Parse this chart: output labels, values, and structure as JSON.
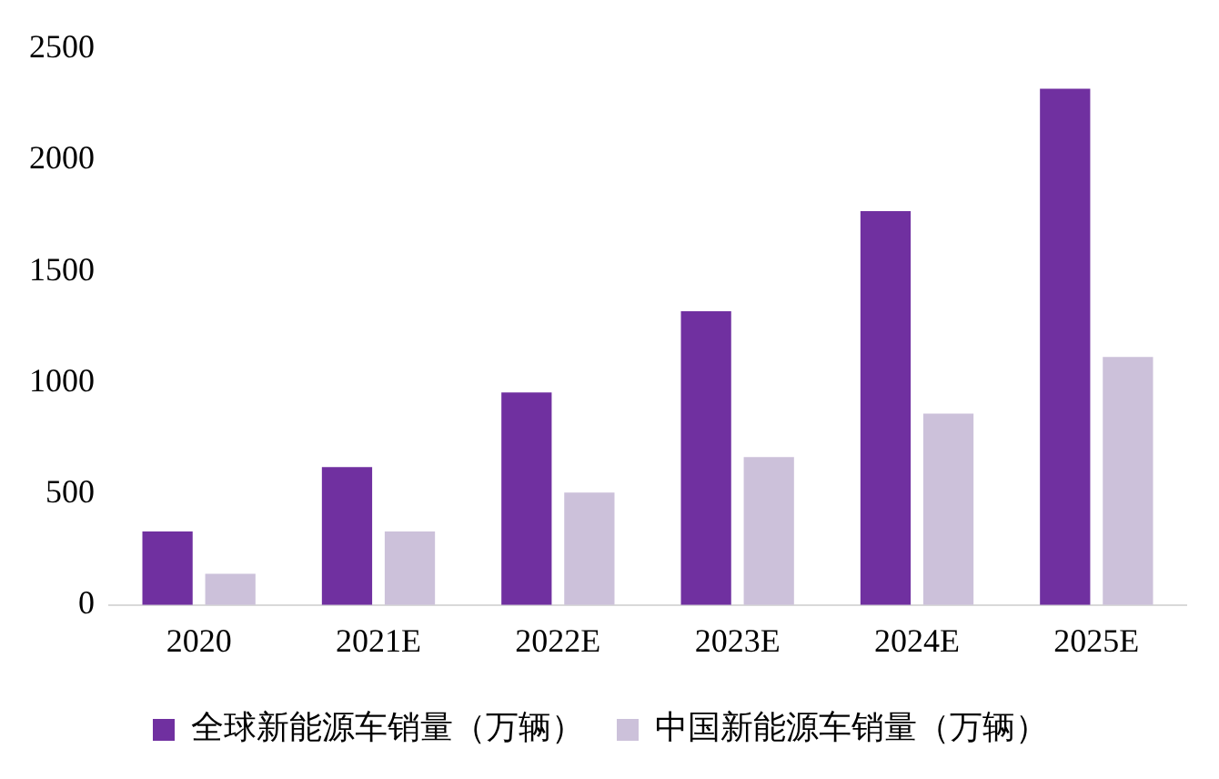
{
  "chart_data": {
    "type": "bar",
    "categories": [
      "2020",
      "2021E",
      "2022E",
      "2023E",
      "2024E",
      "2025E"
    ],
    "series": [
      {
        "name": "全球新能源车销量（万辆）",
        "color": "#7030a0",
        "values": [
          330,
          620,
          955,
          1320,
          1770,
          2320
        ]
      },
      {
        "name": "中国新能源车销量（万辆）",
        "color": "#ccc1da",
        "values": [
          140,
          330,
          505,
          665,
          860,
          1115
        ]
      }
    ],
    "ylim": [
      0,
      2500
    ],
    "yticks": [
      0,
      500,
      1000,
      1500,
      2000,
      2500
    ],
    "grid": false,
    "legend": "bottom"
  }
}
